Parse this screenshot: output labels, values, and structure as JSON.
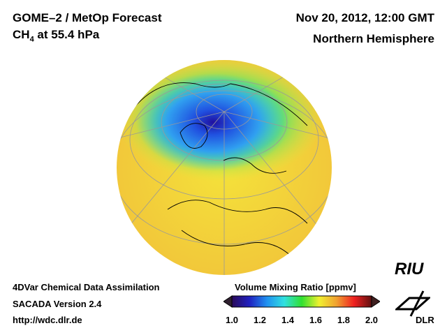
{
  "header": {
    "title": "GOME–2 / MetOp Forecast",
    "species": "CH",
    "species_sub": "4",
    "level": " at 55.4 hPa",
    "date": "Nov 20, 2012, 12:00 GMT",
    "region": "Northern Hemisphere"
  },
  "footer": {
    "line1": "4DVar Chemical Data Assimilation",
    "line2": "SACADA Version 2.4",
    "line3": "http://wdc.dlr.de"
  },
  "colorbar": {
    "title": "Volume Mixing Ratio [ppmv]",
    "ticks": [
      "1.0",
      "1.2",
      "1.4",
      "1.6",
      "1.8",
      "2.0"
    ],
    "min": 1.0,
    "max": 2.0,
    "colors": [
      "#2a0a5a",
      "#2020c0",
      "#2090f0",
      "#30e0e0",
      "#30e030",
      "#f0f030",
      "#f0a030",
      "#f02020",
      "#601010"
    ]
  },
  "logos": {
    "riu": "RIU",
    "dlr": "DLR"
  }
}
